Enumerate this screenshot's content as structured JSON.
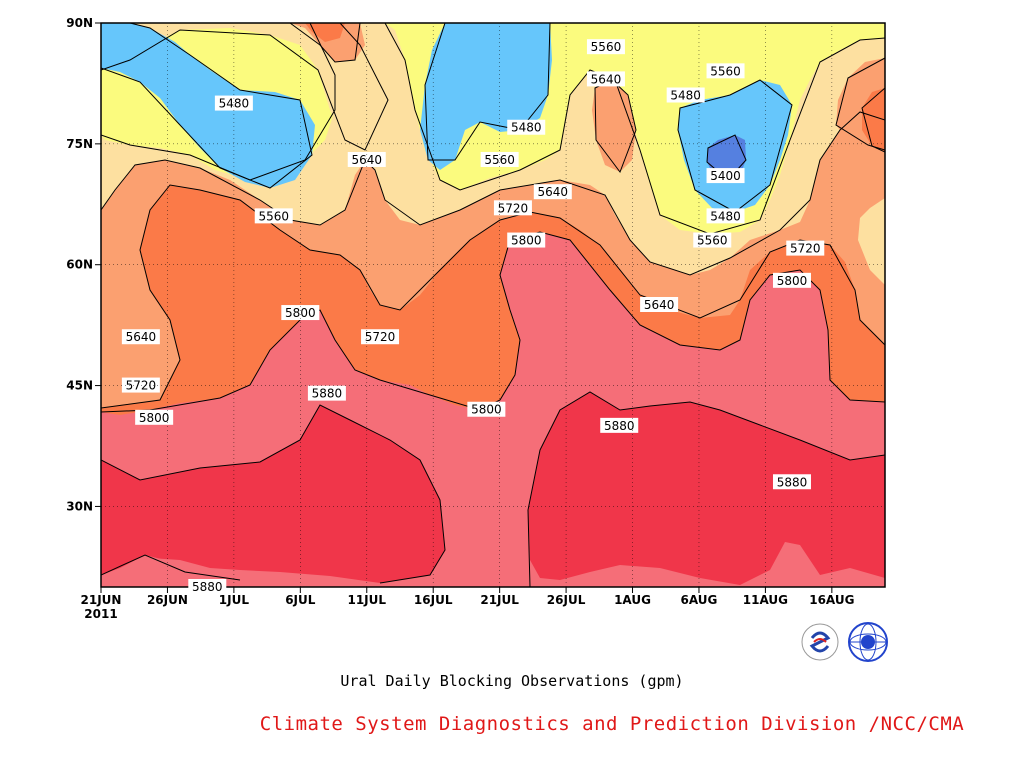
{
  "chart_data": {
    "type": "heatmap",
    "subtitle": "Ural Daily Blocking Observations (gpm)",
    "footer": "Climate System Diagnostics and Prediction Division /NCC/CMA",
    "x_ticks": [
      "21JUN",
      "26JUN",
      "1JUL",
      "6JUL",
      "11JUL",
      "16JUL",
      "21JUL",
      "26JUL",
      "1AUG",
      "6AUG",
      "11AUG",
      "16AUG"
    ],
    "x_year_label": "2011",
    "x_range_days": [
      0,
      59
    ],
    "y_ticks": [
      "30N",
      "45N",
      "60N",
      "75N",
      "90N"
    ],
    "y_tick_values": [
      30,
      45,
      60,
      75,
      90
    ],
    "ylim": [
      20,
      90
    ],
    "contour_levels": [
      5400,
      5480,
      5560,
      5640,
      5720,
      5800,
      5880
    ],
    "fill_colors": {
      "5400": "#5580e0",
      "5480": "#66c6fb",
      "5560": "#fbfb7e",
      "5640": "#fde0a0",
      "5720": "#fba070",
      "5800": "#fb7a48",
      "5880": "#f56e78",
      "above": "#f0364a"
    },
    "contour_labels": [
      {
        "text": "5480",
        "day": 10,
        "lat": 80
      },
      {
        "text": "5560",
        "day": 13,
        "lat": 66
      },
      {
        "text": "5640",
        "day": 20,
        "lat": 73
      },
      {
        "text": "5800",
        "day": 15,
        "lat": 54
      },
      {
        "text": "5720",
        "day": 21,
        "lat": 51
      },
      {
        "text": "5880",
        "day": 17,
        "lat": 44
      },
      {
        "text": "5640",
        "day": 3,
        "lat": 51
      },
      {
        "text": "5720",
        "day": 3,
        "lat": 45
      },
      {
        "text": "5800",
        "day": 4,
        "lat": 41
      },
      {
        "text": "5880",
        "day": 8,
        "lat": 20
      },
      {
        "text": "5480",
        "day": 32,
        "lat": 77
      },
      {
        "text": "5560",
        "day": 30,
        "lat": 73
      },
      {
        "text": "5640",
        "day": 34,
        "lat": 69
      },
      {
        "text": "5720",
        "day": 31,
        "lat": 67
      },
      {
        "text": "5800",
        "day": 32,
        "lat": 63
      },
      {
        "text": "5800",
        "day": 29,
        "lat": 42
      },
      {
        "text": "5880",
        "day": 39,
        "lat": 40
      },
      {
        "text": "5560",
        "day": 38,
        "lat": 87
      },
      {
        "text": "5640",
        "day": 38,
        "lat": 83
      },
      {
        "text": "5560",
        "day": 47,
        "lat": 84
      },
      {
        "text": "5480",
        "day": 44,
        "lat": 81
      },
      {
        "text": "5400",
        "day": 47,
        "lat": 71
      },
      {
        "text": "5480",
        "day": 47,
        "lat": 66
      },
      {
        "text": "5560",
        "day": 46,
        "lat": 63
      },
      {
        "text": "5640",
        "day": 42,
        "lat": 55
      },
      {
        "text": "5720",
        "day": 53,
        "lat": 62
      },
      {
        "text": "5800",
        "day": 52,
        "lat": 58
      },
      {
        "text": "5880",
        "day": 52,
        "lat": 33
      }
    ]
  }
}
